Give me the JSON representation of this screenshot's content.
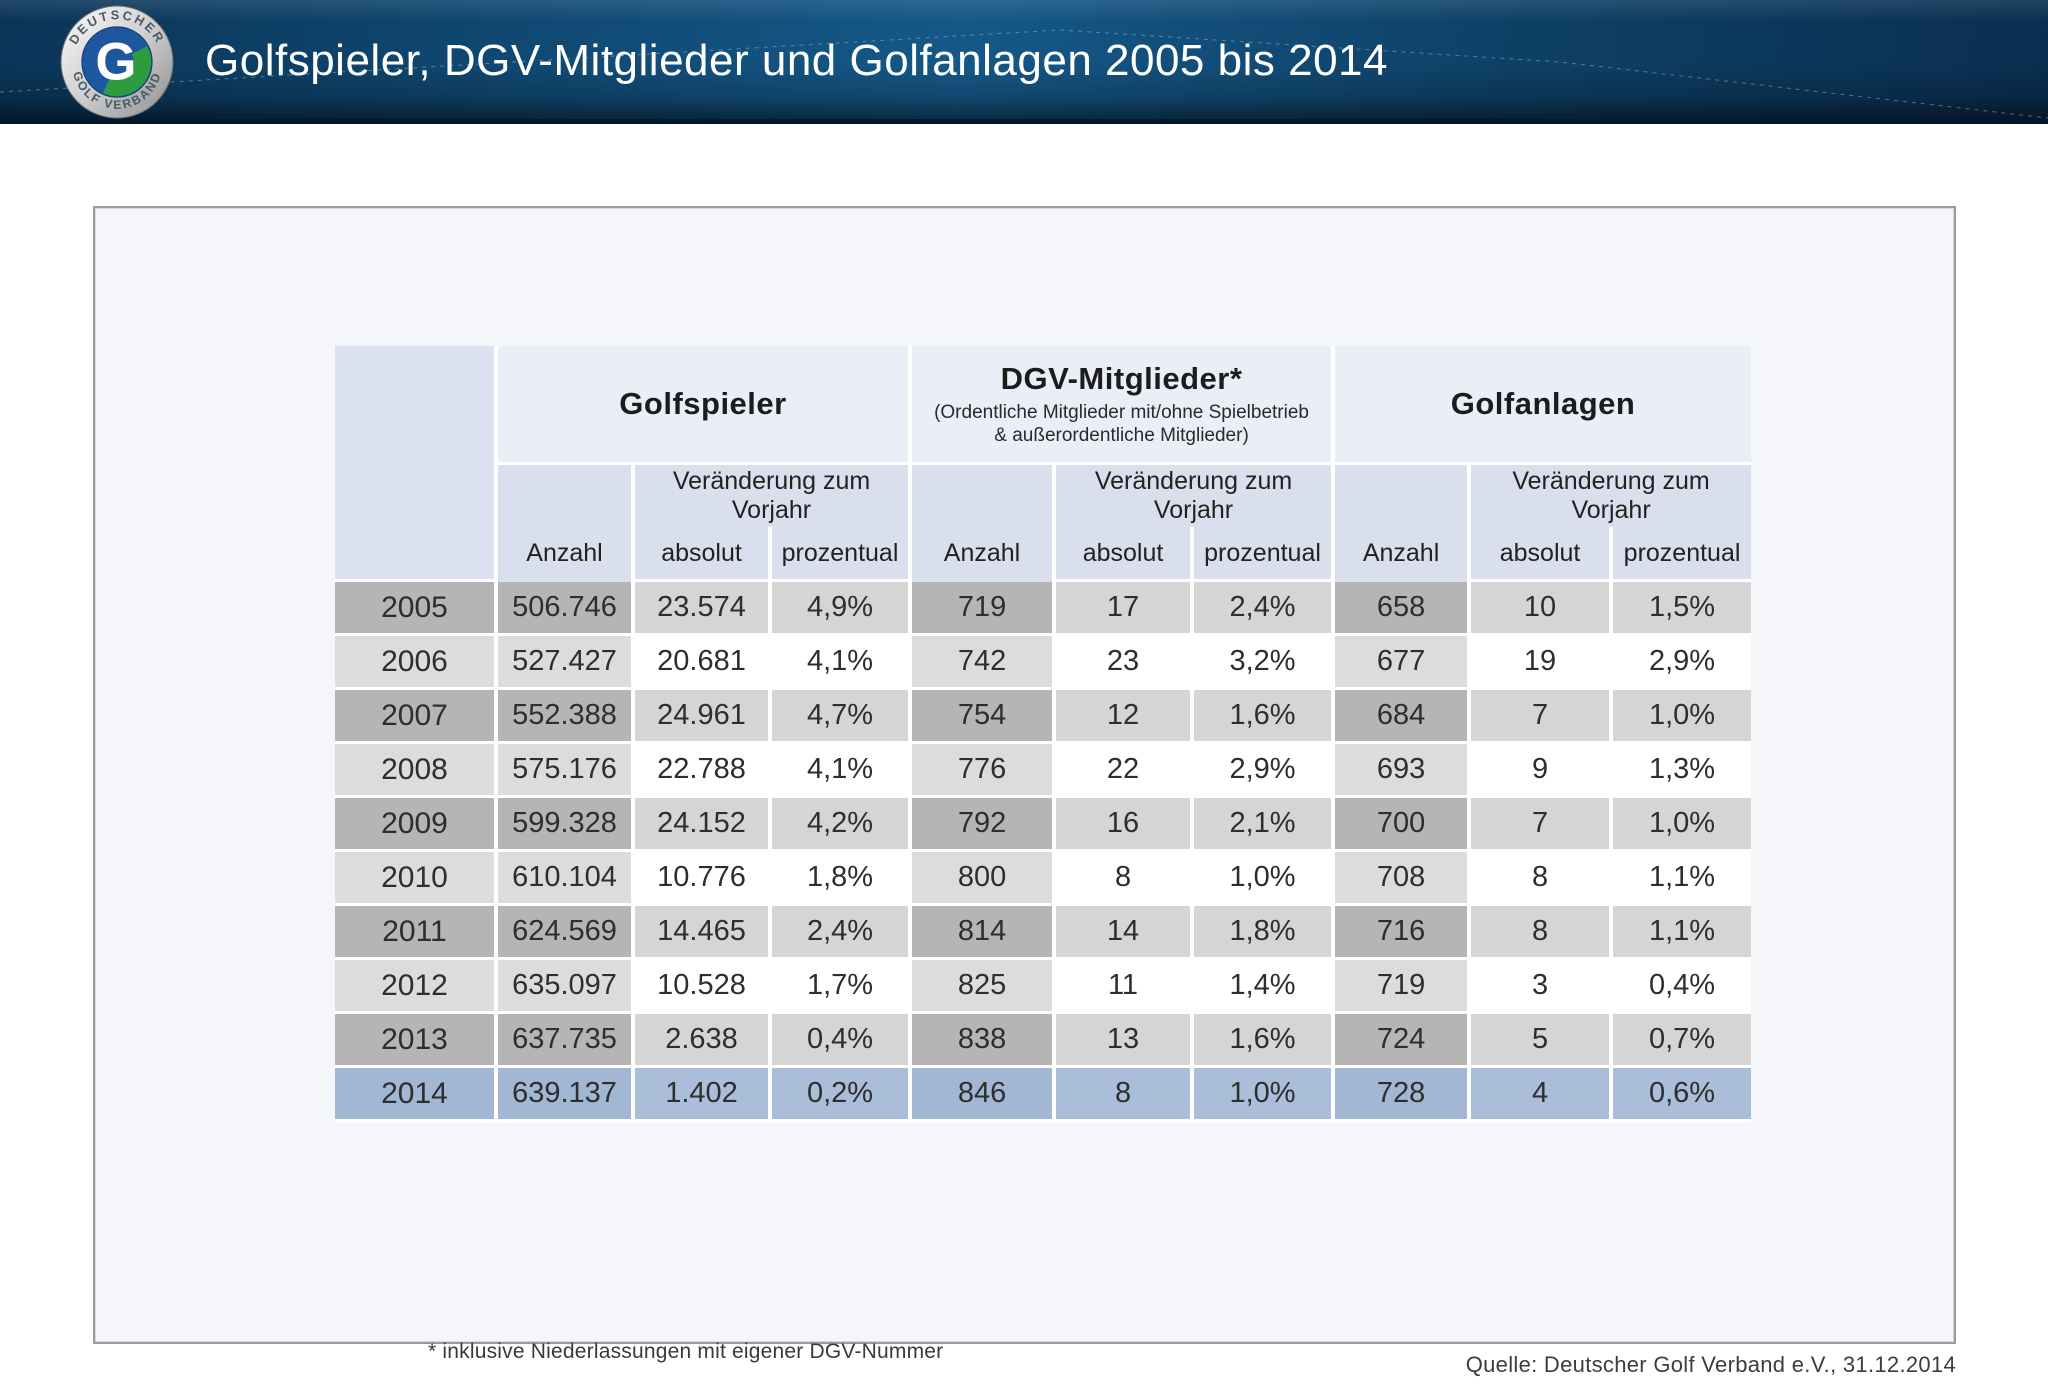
{
  "header": {
    "title": "Golfspieler, DGV-Mitglieder und Golfanlagen 2005 bis 2014",
    "logo": {
      "top_text": "DEUTSCHER",
      "bottom_text": "GOLF VERBAND",
      "letter": "G"
    }
  },
  "table": {
    "groups": [
      {
        "title": "Golfspieler",
        "subtitle_line1": "",
        "subtitle_line2": ""
      },
      {
        "title": "DGV-Mitglieder*",
        "subtitle_line1": "(Ordentliche Mitglieder mit/ohne Spielbetrieb",
        "subtitle_line2": "& außerordentliche Mitglieder)"
      },
      {
        "title": "Golfanlagen",
        "subtitle_line1": "",
        "subtitle_line2": ""
      }
    ],
    "change_label": "Veränderung zum Vorjahr",
    "col_labels": {
      "anzahl": "Anzahl",
      "absolut": "absolut",
      "prozentual": "prozentual"
    },
    "rows": [
      {
        "year": "2005",
        "golfspieler": [
          "506.746",
          "23.574",
          "4,9%"
        ],
        "dgv": [
          "719",
          "17",
          "2,4%"
        ],
        "golfanlagen": [
          "658",
          "10",
          "1,5%"
        ]
      },
      {
        "year": "2006",
        "golfspieler": [
          "527.427",
          "20.681",
          "4,1%"
        ],
        "dgv": [
          "742",
          "23",
          "3,2%"
        ],
        "golfanlagen": [
          "677",
          "19",
          "2,9%"
        ]
      },
      {
        "year": "2007",
        "golfspieler": [
          "552.388",
          "24.961",
          "4,7%"
        ],
        "dgv": [
          "754",
          "12",
          "1,6%"
        ],
        "golfanlagen": [
          "684",
          "7",
          "1,0%"
        ]
      },
      {
        "year": "2008",
        "golfspieler": [
          "575.176",
          "22.788",
          "4,1%"
        ],
        "dgv": [
          "776",
          "22",
          "2,9%"
        ],
        "golfanlagen": [
          "693",
          "9",
          "1,3%"
        ]
      },
      {
        "year": "2009",
        "golfspieler": [
          "599.328",
          "24.152",
          "4,2%"
        ],
        "dgv": [
          "792",
          "16",
          "2,1%"
        ],
        "golfanlagen": [
          "700",
          "7",
          "1,0%"
        ]
      },
      {
        "year": "2010",
        "golfspieler": [
          "610.104",
          "10.776",
          "1,8%"
        ],
        "dgv": [
          "800",
          "8",
          "1,0%"
        ],
        "golfanlagen": [
          "708",
          "8",
          "1,1%"
        ]
      },
      {
        "year": "2011",
        "golfspieler": [
          "624.569",
          "14.465",
          "2,4%"
        ],
        "dgv": [
          "814",
          "14",
          "1,8%"
        ],
        "golfanlagen": [
          "716",
          "8",
          "1,1%"
        ]
      },
      {
        "year": "2012",
        "golfspieler": [
          "635.097",
          "10.528",
          "1,7%"
        ],
        "dgv": [
          "825",
          "11",
          "1,4%"
        ],
        "golfanlagen": [
          "719",
          "3",
          "0,4%"
        ]
      },
      {
        "year": "2013",
        "golfspieler": [
          "637.735",
          "2.638",
          "0,4%"
        ],
        "dgv": [
          "838",
          "13",
          "1,6%"
        ],
        "golfanlagen": [
          "724",
          "5",
          "0,7%"
        ]
      },
      {
        "year": "2014",
        "golfspieler": [
          "639.137",
          "1.402",
          "0,2%"
        ],
        "dgv": [
          "846",
          "8",
          "1,0%"
        ],
        "golfanlagen": [
          "728",
          "4",
          "0,6%"
        ]
      }
    ]
  },
  "footnote": "* inklusive Niederlassungen mit eigener DGV-Nummer",
  "source": "Quelle: Deutscher Golf Verband e.V., 31.12.2014",
  "colors": {
    "header_blue_dark": "#0b3457",
    "header_blue_mid": "#155887",
    "header_edge": "#04182b",
    "card_bg": "#f5f6fa",
    "card_border": "#9b9b9b",
    "group_header_bg": "#eaeef6",
    "subheader_bg": "#d9dfec",
    "corner_bg": "#dce2f0",
    "row_dark_anzahl": "#b5b5b5",
    "row_dark_change": "#d5d5d5",
    "row_light_anzahl": "#dcdcdc",
    "row_light_change": "#ffffff",
    "highlight_row_blue": "#a6bad6",
    "logo_blue": "#1d57a0",
    "logo_green": "#2d9c40",
    "text_dark": "#2e2e2e"
  }
}
